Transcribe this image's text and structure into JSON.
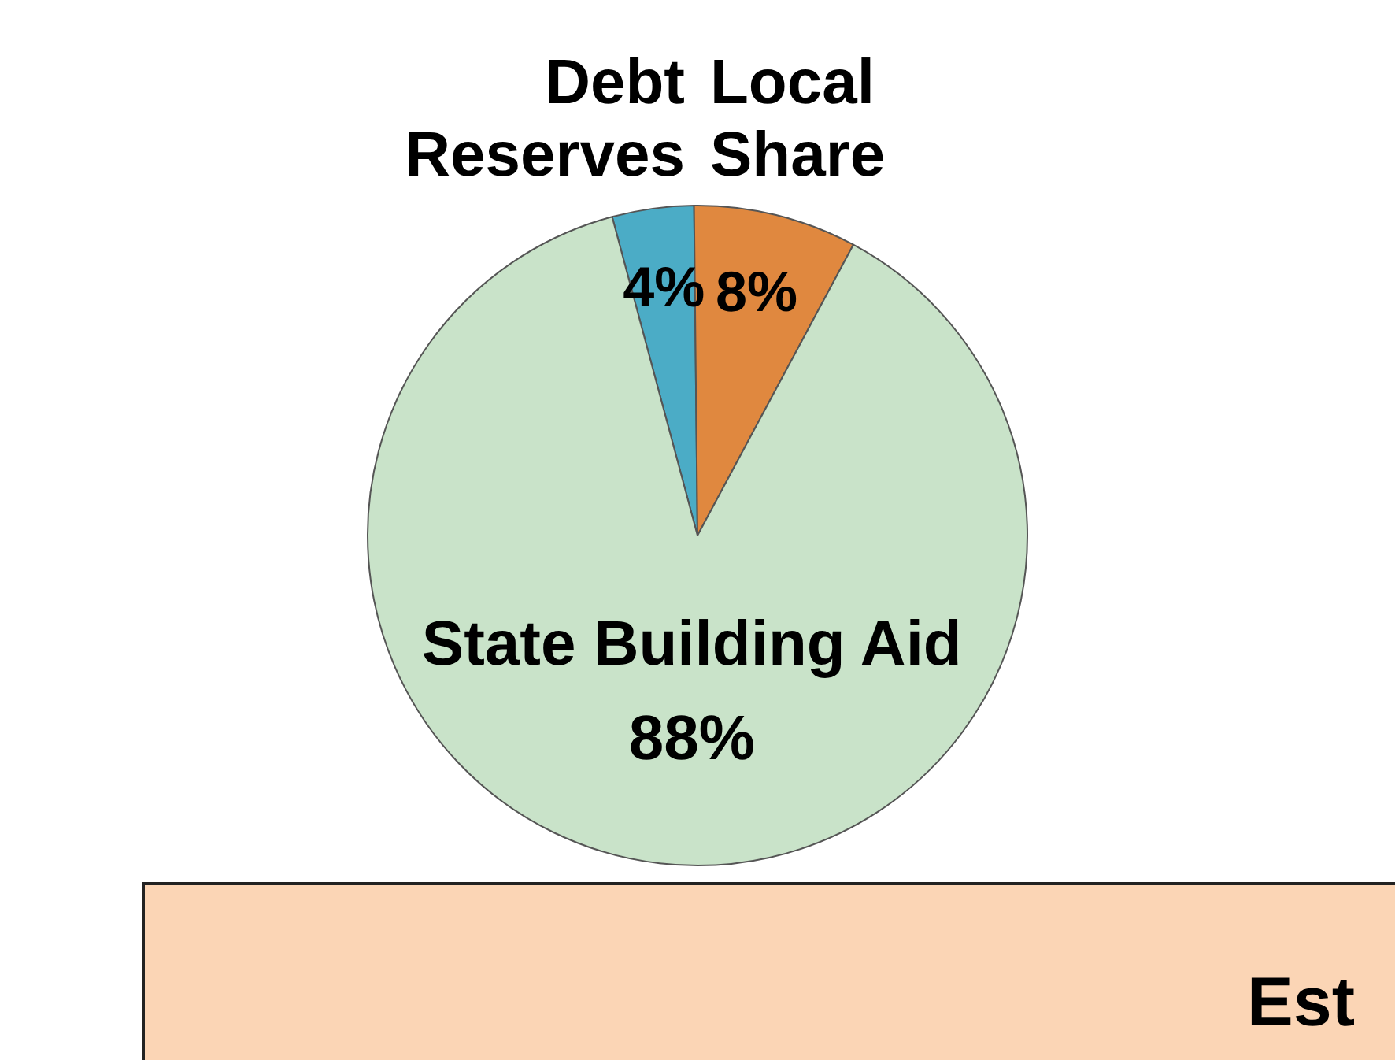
{
  "chart_data": {
    "type": "pie",
    "categories": [
      "Debt Reserves",
      "Local Share",
      "State Building Aid"
    ],
    "values": [
      4,
      8,
      88
    ],
    "colors": [
      "#4bacc6",
      "#e0883f",
      "#c9e3c9"
    ],
    "value_labels": [
      "4%",
      "8%",
      "88%"
    ],
    "legend": false,
    "annotations": [
      "Est"
    ]
  }
}
